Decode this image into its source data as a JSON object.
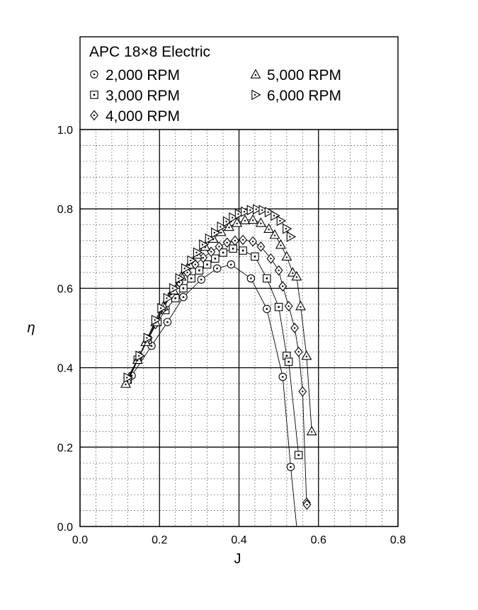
{
  "chart_data": {
    "type": "line",
    "title": "APC 18×8 Electric",
    "xlabel": "J",
    "ylabel": "η",
    "xlim": [
      0.0,
      0.8
    ],
    "ylim": [
      0.0,
      1.0
    ],
    "x_ticks": [
      "0.0",
      "0.2",
      "0.4",
      "0.6",
      "0.8"
    ],
    "y_ticks": [
      "0.0",
      "0.2",
      "0.4",
      "0.6",
      "0.8",
      "1.0"
    ],
    "grid": {
      "major": true,
      "minor": true
    },
    "legend_position": "top",
    "series": [
      {
        "name": "2,000 RPM",
        "marker": "circle",
        "points": [
          [
            0.13,
            0.38
          ],
          [
            0.18,
            0.455
          ],
          [
            0.22,
            0.515
          ],
          [
            0.26,
            0.578
          ],
          [
            0.305,
            0.622
          ],
          [
            0.345,
            0.65
          ],
          [
            0.38,
            0.66
          ],
          [
            0.43,
            0.625
          ],
          [
            0.47,
            0.548
          ],
          [
            0.51,
            0.377
          ],
          [
            0.53,
            0.15
          ],
          [
            0.545,
            0.0
          ]
        ]
      },
      {
        "name": "3,000 RPM",
        "marker": "square",
        "points": [
          [
            0.12,
            0.37
          ],
          [
            0.145,
            0.42
          ],
          [
            0.17,
            0.47
          ],
          [
            0.195,
            0.515
          ],
          [
            0.215,
            0.545
          ],
          [
            0.24,
            0.575
          ],
          [
            0.26,
            0.6
          ],
          [
            0.28,
            0.625
          ],
          [
            0.3,
            0.645
          ],
          [
            0.32,
            0.66
          ],
          [
            0.34,
            0.675
          ],
          [
            0.36,
            0.69
          ],
          [
            0.385,
            0.7
          ],
          [
            0.41,
            0.695
          ],
          [
            0.44,
            0.68
          ],
          [
            0.47,
            0.625
          ],
          [
            0.5,
            0.553
          ],
          [
            0.52,
            0.43
          ],
          [
            0.525,
            0.415
          ],
          [
            0.55,
            0.18
          ]
        ]
      },
      {
        "name": "4,000 RPM",
        "marker": "diamond",
        "points": [
          [
            0.12,
            0.365
          ],
          [
            0.15,
            0.43
          ],
          [
            0.17,
            0.472
          ],
          [
            0.19,
            0.51
          ],
          [
            0.21,
            0.55
          ],
          [
            0.23,
            0.585
          ],
          [
            0.25,
            0.615
          ],
          [
            0.27,
            0.64
          ],
          [
            0.29,
            0.66
          ],
          [
            0.31,
            0.677
          ],
          [
            0.33,
            0.692
          ],
          [
            0.35,
            0.705
          ],
          [
            0.37,
            0.715
          ],
          [
            0.39,
            0.72
          ],
          [
            0.41,
            0.722
          ],
          [
            0.435,
            0.718
          ],
          [
            0.455,
            0.705
          ],
          [
            0.48,
            0.675
          ],
          [
            0.5,
            0.645
          ],
          [
            0.51,
            0.605
          ],
          [
            0.525,
            0.555
          ],
          [
            0.54,
            0.5
          ],
          [
            0.55,
            0.44
          ],
          [
            0.56,
            0.34
          ],
          [
            0.57,
            0.06
          ],
          [
            0.571,
            0.055
          ]
        ]
      },
      {
        "name": "5,000 RPM",
        "marker": "triangle-up",
        "points": [
          [
            0.115,
            0.36
          ],
          [
            0.145,
            0.42
          ],
          [
            0.165,
            0.465
          ],
          [
            0.19,
            0.515
          ],
          [
            0.21,
            0.555
          ],
          [
            0.235,
            0.595
          ],
          [
            0.255,
            0.63
          ],
          [
            0.275,
            0.66
          ],
          [
            0.295,
            0.685
          ],
          [
            0.315,
            0.705
          ],
          [
            0.335,
            0.725
          ],
          [
            0.355,
            0.742
          ],
          [
            0.375,
            0.755
          ],
          [
            0.395,
            0.765
          ],
          [
            0.415,
            0.772
          ],
          [
            0.435,
            0.773
          ],
          [
            0.455,
            0.765
          ],
          [
            0.475,
            0.75
          ],
          [
            0.49,
            0.735
          ],
          [
            0.505,
            0.71
          ],
          [
            0.52,
            0.68
          ],
          [
            0.535,
            0.64
          ],
          [
            0.545,
            0.63
          ],
          [
            0.555,
            0.555
          ],
          [
            0.57,
            0.43
          ],
          [
            0.583,
            0.24
          ]
        ]
      },
      {
        "name": "6,000 RPM",
        "marker": "triangle-right",
        "points": [
          [
            0.12,
            0.375
          ],
          [
            0.15,
            0.43
          ],
          [
            0.17,
            0.475
          ],
          [
            0.19,
            0.52
          ],
          [
            0.205,
            0.55
          ],
          [
            0.22,
            0.575
          ],
          [
            0.235,
            0.6
          ],
          [
            0.25,
            0.625
          ],
          [
            0.265,
            0.65
          ],
          [
            0.28,
            0.67
          ],
          [
            0.295,
            0.69
          ],
          [
            0.31,
            0.71
          ],
          [
            0.325,
            0.725
          ],
          [
            0.34,
            0.74
          ],
          [
            0.355,
            0.755
          ],
          [
            0.37,
            0.768
          ],
          [
            0.385,
            0.778
          ],
          [
            0.4,
            0.787
          ],
          [
            0.415,
            0.793
          ],
          [
            0.43,
            0.797
          ],
          [
            0.445,
            0.799
          ],
          [
            0.46,
            0.797
          ],
          [
            0.475,
            0.792
          ],
          [
            0.49,
            0.783
          ],
          [
            0.505,
            0.77
          ],
          [
            0.52,
            0.75
          ],
          [
            0.53,
            0.73
          ]
        ]
      }
    ]
  }
}
